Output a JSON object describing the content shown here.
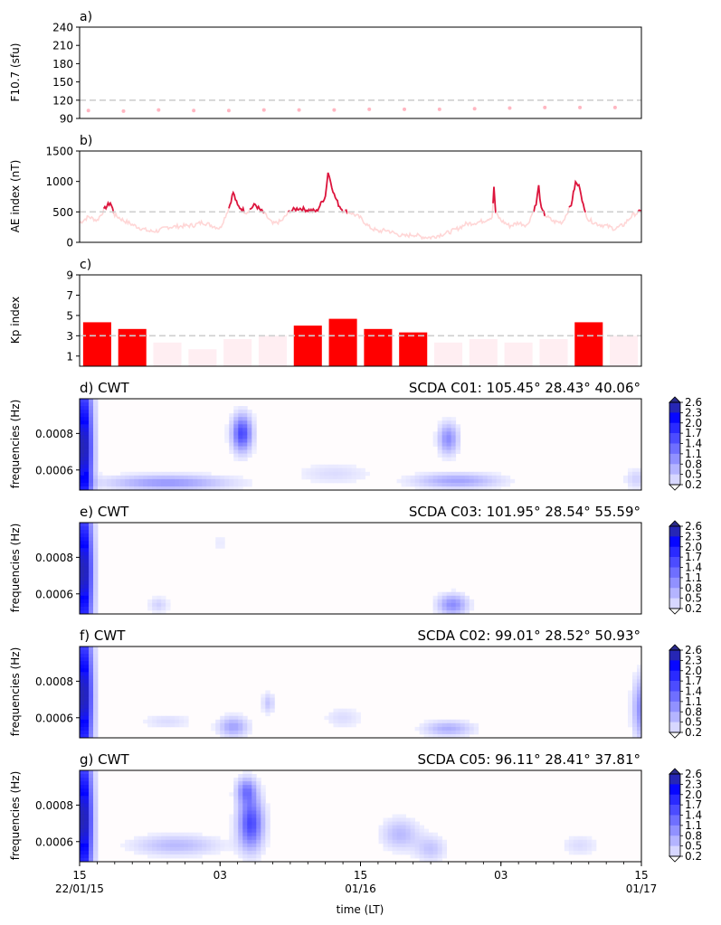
{
  "chart_data": [
    {
      "type": "scatter",
      "panel_label": "a)",
      "ylabel": "F10.7 (sfu)",
      "ylim": [
        90,
        240
      ],
      "yticks": [
        "240",
        "210",
        "180",
        "150",
        "120",
        "90"
      ],
      "threshold": 120,
      "color": "#ffb6c1",
      "x_hours": [
        1,
        5,
        9,
        13,
        17,
        21,
        25,
        29,
        33,
        37,
        41,
        45,
        49,
        53,
        57,
        61
      ],
      "values": [
        103,
        102,
        104,
        103,
        103,
        104,
        104,
        104,
        105,
        105,
        105,
        106,
        107,
        108,
        108,
        108
      ]
    },
    {
      "type": "line",
      "panel_label": "b)",
      "ylabel": "AE index (nT)",
      "ylim": [
        0,
        1500
      ],
      "yticks": [
        "1500",
        "1000",
        "500",
        "0"
      ],
      "threshold": 500,
      "color_above": "#dc143c",
      "color_below": "#ffd6d6",
      "x_hours": [
        0,
        1,
        2,
        3,
        3.5,
        4,
        5,
        6,
        7,
        8,
        9,
        10,
        11,
        12,
        13,
        14,
        16,
        17,
        17.5,
        18,
        19,
        20,
        20.5,
        21,
        22,
        23,
        24,
        25,
        26,
        27,
        28,
        28.3,
        28.6,
        29,
        29.5,
        30,
        31,
        32,
        33,
        34,
        35,
        36,
        37,
        38,
        39,
        40,
        41,
        42,
        43,
        44,
        45,
        46,
        47,
        47.2,
        47.4,
        48,
        49,
        50,
        51,
        52,
        52.3,
        52.6,
        53,
        54,
        55,
        56,
        56.5,
        57,
        57.5,
        58,
        59,
        60,
        61,
        62,
        63,
        64
      ],
      "values": [
        320,
        420,
        360,
        580,
        650,
        450,
        360,
        290,
        230,
        180,
        190,
        250,
        260,
        270,
        280,
        330,
        230,
        560,
        820,
        600,
        490,
        620,
        540,
        480,
        300,
        350,
        520,
        560,
        530,
        510,
        760,
        1150,
        1000,
        780,
        620,
        520,
        480,
        400,
        250,
        180,
        200,
        140,
        100,
        130,
        90,
        80,
        120,
        160,
        220,
        300,
        320,
        350,
        420,
        890,
        480,
        360,
        270,
        320,
        280,
        620,
        920,
        540,
        450,
        340,
        330,
        620,
        980,
        900,
        520,
        370,
        300,
        270,
        220,
        290,
        450,
        510
      ]
    },
    {
      "type": "bar",
      "panel_label": "c)",
      "ylabel": "Kp index",
      "ylim": [
        0,
        9
      ],
      "yticks": [
        "9",
        "7",
        "5",
        "3",
        "1"
      ],
      "threshold": 3,
      "color_above": "#ff0000",
      "color_below": "#ffeef2",
      "values": [
        4.33,
        3.67,
        2.33,
        1.67,
        2.67,
        3.0,
        4.0,
        4.67,
        3.67,
        3.33,
        2.33,
        2.67,
        2.33,
        2.67,
        4.33,
        3.0
      ]
    },
    {
      "type": "heatmap",
      "panel_label": "d) CWT",
      "station": "SCDA C01: 105.45° 28.43° 40.06°",
      "ylabel": "frequencies (Hz)",
      "yticks": [
        "0.0008",
        "0.0006"
      ],
      "colorbar_ticks": [
        "2.6",
        "2.3",
        "2.0",
        "1.7",
        "1.4",
        "1.1",
        "0.8",
        "0.5",
        "0.2"
      ],
      "blobs": [
        {
          "t": 0.5,
          "f": 0.00072,
          "w": 0.7,
          "h": 0.0003,
          "v": 2.6
        },
        {
          "t": 18.5,
          "f": 0.0008,
          "w": 0.8,
          "h": 7e-05,
          "v": 1.6
        },
        {
          "t": 10,
          "f": 0.00053,
          "w": 5.0,
          "h": 3e-05,
          "v": 0.9
        },
        {
          "t": 42,
          "f": 0.00077,
          "w": 0.8,
          "h": 6e-05,
          "v": 1.0
        },
        {
          "t": 43,
          "f": 0.00054,
          "w": 3.5,
          "h": 3e-05,
          "v": 0.8
        },
        {
          "t": 29,
          "f": 0.00058,
          "w": 3.0,
          "h": 4e-05,
          "v": 0.3
        },
        {
          "t": 63.5,
          "f": 0.00055,
          "w": 1.0,
          "h": 4e-05,
          "v": 0.4
        }
      ]
    },
    {
      "type": "heatmap",
      "panel_label": "e) CWT",
      "station": "SCDA C03: 101.95° 28.54° 55.59°",
      "ylabel": "frequencies (Hz)",
      "yticks": [
        "0.0008",
        "0.0006"
      ],
      "colorbar_ticks": [
        "2.6",
        "2.3",
        "2.0",
        "1.7",
        "1.4",
        "1.1",
        "0.8",
        "0.5",
        "0.2"
      ],
      "blobs": [
        {
          "t": 0.5,
          "f": 0.00072,
          "w": 0.7,
          "h": 0.0003,
          "v": 2.6
        },
        {
          "t": 42.5,
          "f": 0.00054,
          "w": 1.2,
          "h": 4e-05,
          "v": 1.0
        },
        {
          "t": 9,
          "f": 0.00054,
          "w": 0.8,
          "h": 3e-05,
          "v": 0.4
        },
        {
          "t": 16,
          "f": 0.00088,
          "w": 0.5,
          "h": 4e-05,
          "v": 0.2
        }
      ]
    },
    {
      "type": "heatmap",
      "panel_label": "f) CWT",
      "station": "SCDA C02:  99.01° 28.52° 50.93°",
      "ylabel": "frequencies (Hz)",
      "yticks": [
        "0.0008",
        "0.0006"
      ],
      "colorbar_ticks": [
        "2.6",
        "2.3",
        "2.0",
        "1.7",
        "1.4",
        "1.1",
        "0.8",
        "0.5",
        "0.2"
      ],
      "blobs": [
        {
          "t": 0.5,
          "f": 0.00072,
          "w": 0.7,
          "h": 0.0003,
          "v": 2.6
        },
        {
          "t": 17.5,
          "f": 0.00055,
          "w": 1.2,
          "h": 4e-05,
          "v": 0.8
        },
        {
          "t": 21.5,
          "f": 0.00068,
          "w": 0.5,
          "h": 4e-05,
          "v": 0.5
        },
        {
          "t": 42,
          "f": 0.00054,
          "w": 2.0,
          "h": 3e-05,
          "v": 0.7
        },
        {
          "t": 10,
          "f": 0.00058,
          "w": 2.0,
          "h": 3e-05,
          "v": 0.3
        },
        {
          "t": 30,
          "f": 0.0006,
          "w": 1.5,
          "h": 4e-05,
          "v": 0.3
        },
        {
          "t": 64,
          "f": 0.00065,
          "w": 0.7,
          "h": 0.00012,
          "v": 1.0
        }
      ]
    },
    {
      "type": "heatmap",
      "panel_label": "g) CWT",
      "station": "SCDA C05:  96.11° 28.41° 37.81°",
      "ylabel": "frequencies (Hz)",
      "yticks": [
        "0.0008",
        "0.0006"
      ],
      "colorbar_ticks": [
        "2.6",
        "2.3",
        "2.0",
        "1.7",
        "1.4",
        "1.1",
        "0.8",
        "0.5",
        "0.2"
      ],
      "blobs": [
        {
          "t": 0.5,
          "f": 0.00072,
          "w": 0.7,
          "h": 0.0003,
          "v": 2.6
        },
        {
          "t": 19.5,
          "f": 0.0007,
          "w": 1.0,
          "h": 0.0001,
          "v": 1.6
        },
        {
          "t": 19,
          "f": 0.00088,
          "w": 0.8,
          "h": 5e-05,
          "v": 1.0
        },
        {
          "t": 11,
          "f": 0.00058,
          "w": 3.5,
          "h": 4e-05,
          "v": 0.6
        },
        {
          "t": 36.5,
          "f": 0.00064,
          "w": 1.5,
          "h": 6e-05,
          "v": 0.6
        },
        {
          "t": 40,
          "f": 0.00056,
          "w": 1.2,
          "h": 5e-05,
          "v": 0.5
        },
        {
          "t": 57,
          "f": 0.00058,
          "w": 1.5,
          "h": 4e-05,
          "v": 0.3
        }
      ]
    }
  ],
  "xaxis": {
    "label": "time (LT)",
    "ticks": [
      {
        "hour": 0,
        "label": "15",
        "sub": "22/01/15"
      },
      {
        "hour": 12,
        "label": "03",
        "sub": ""
      },
      {
        "hour": 24,
        "label": "15",
        "sub": "01/16"
      },
      {
        "hour": 36,
        "label": "03",
        "sub": ""
      },
      {
        "hour": 48,
        "label": "15",
        "sub": "01/17"
      }
    ]
  }
}
